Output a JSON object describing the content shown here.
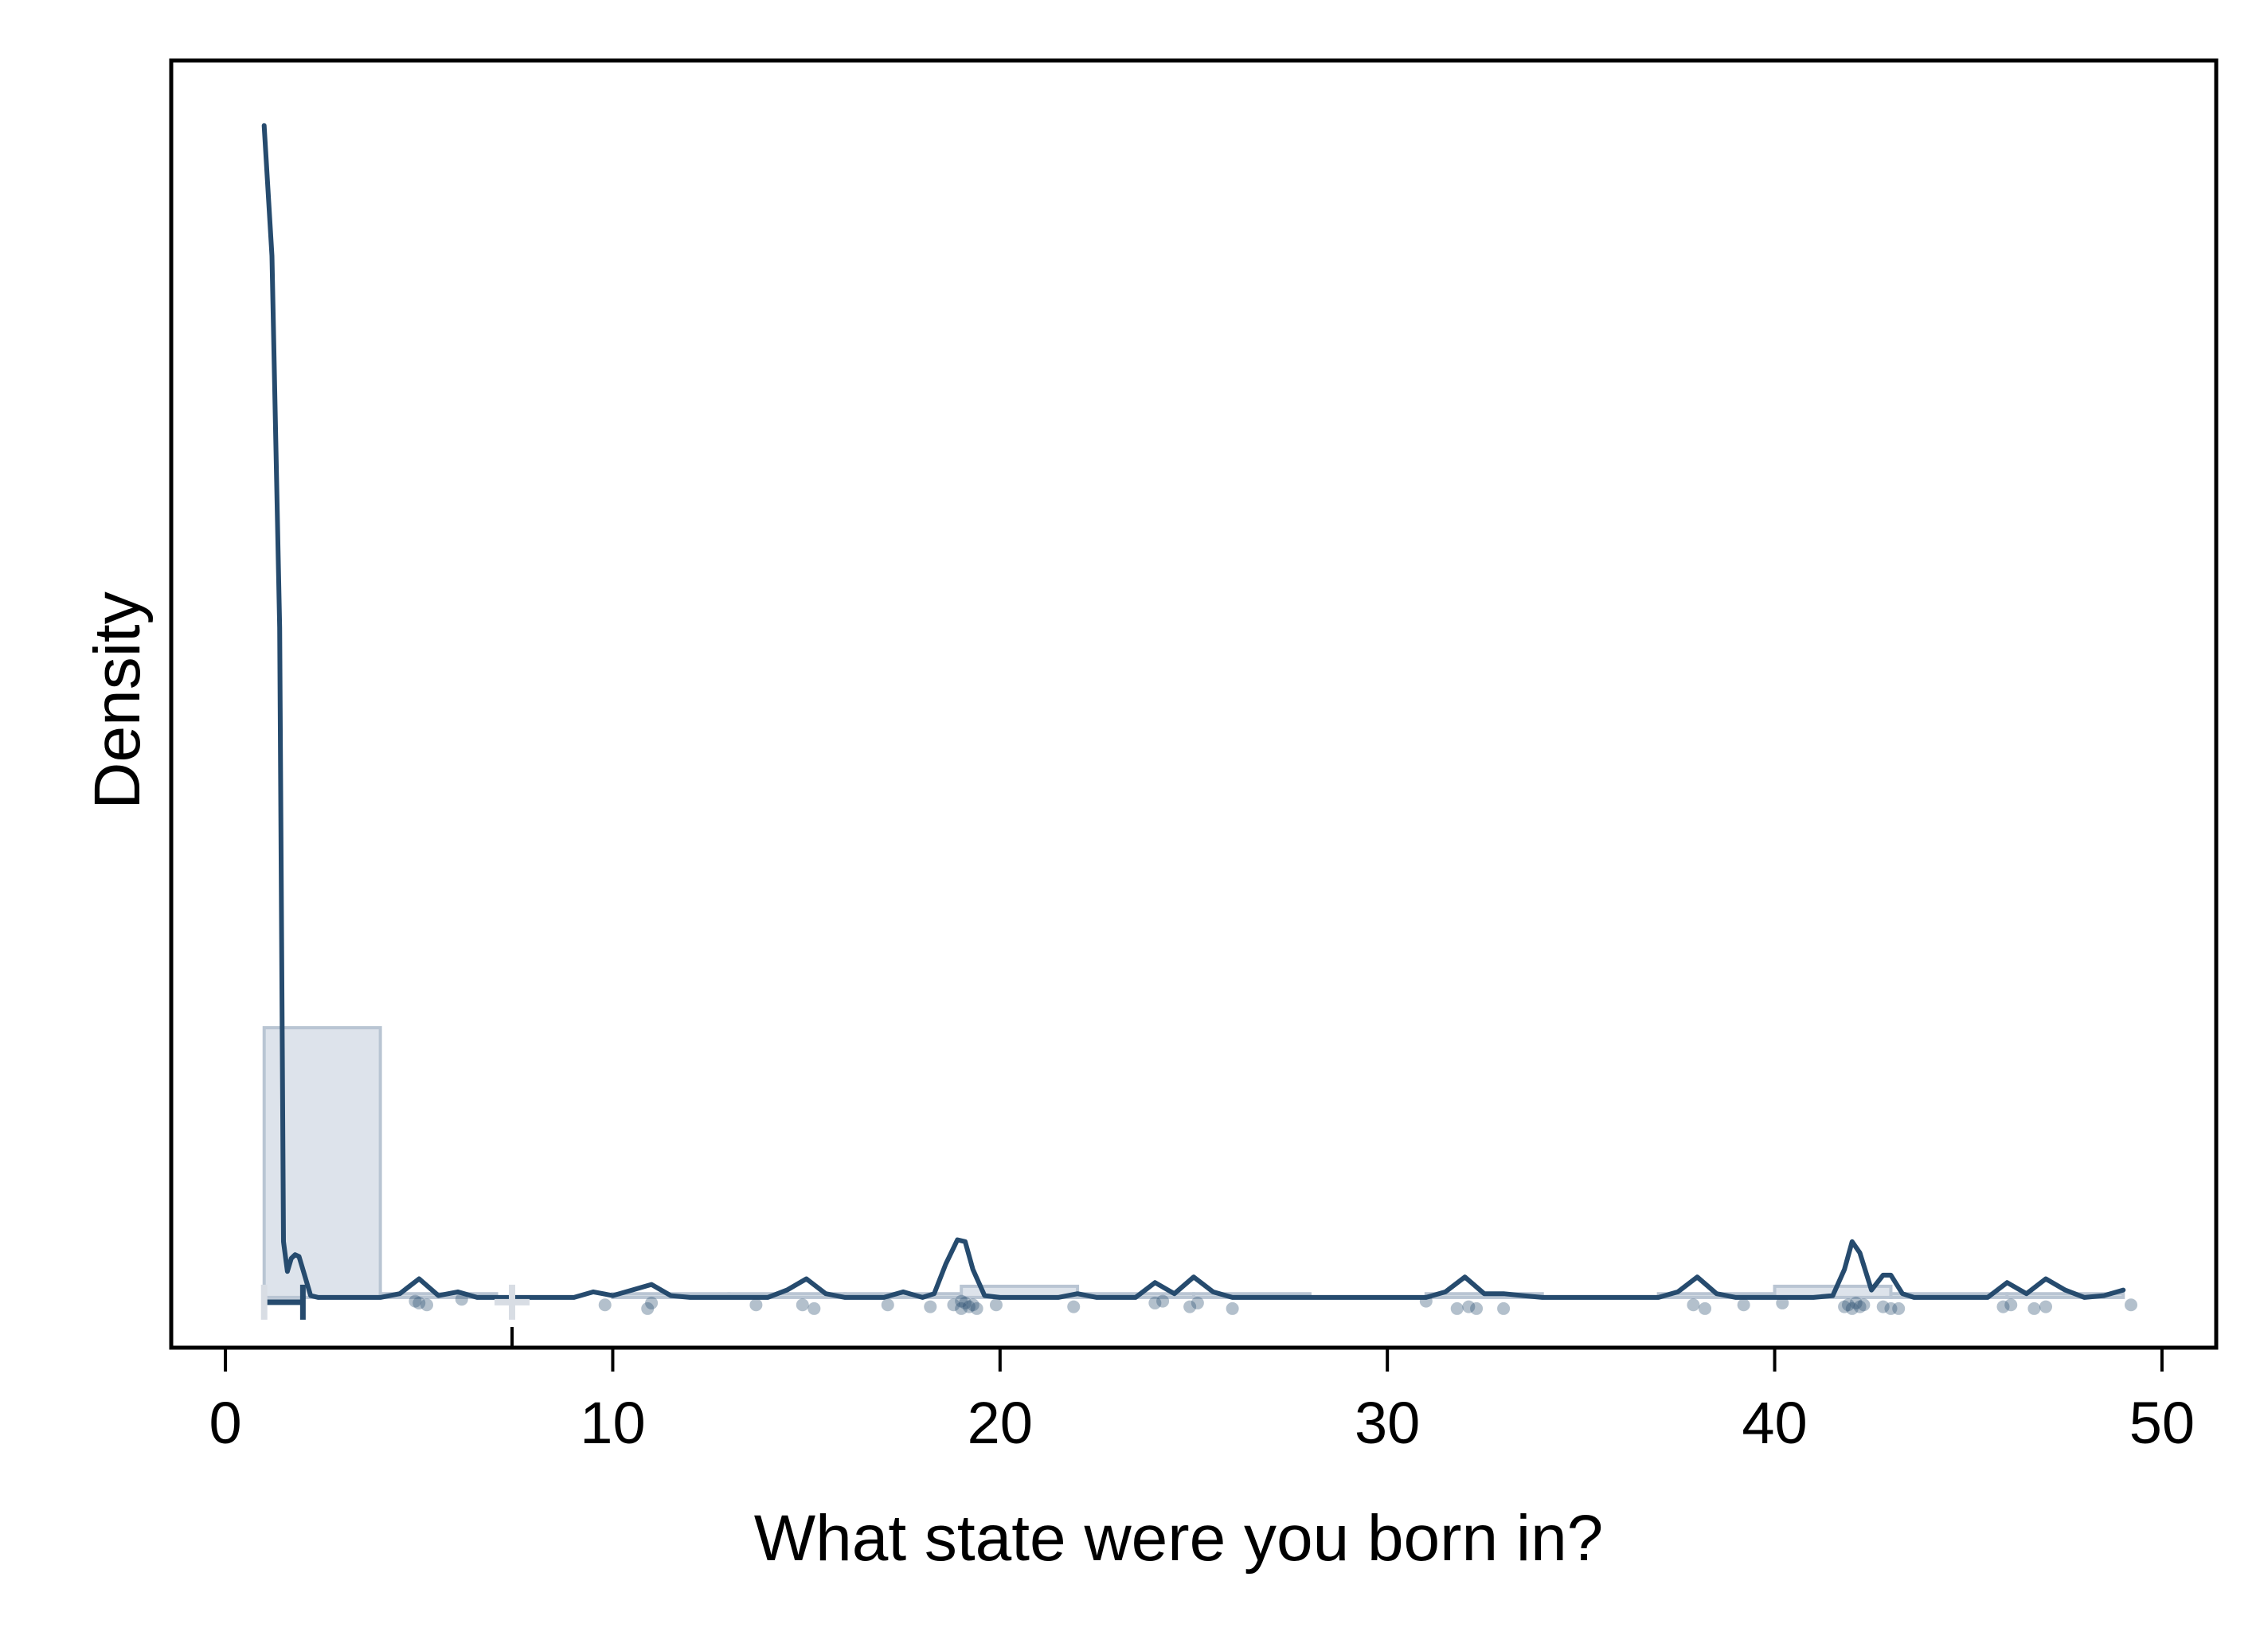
{
  "chart_data": {
    "type": "density",
    "title": "",
    "xlabel": "What state were you born in?",
    "ylabel": "Density",
    "xlim": [
      -1.4,
      51.4
    ],
    "ylim": [
      -0.027,
      0.665
    ],
    "x_ticks": [
      0,
      10,
      20,
      30,
      40,
      50
    ],
    "x_tick_labels": [
      "0",
      "10",
      "20",
      "30",
      "40",
      "50"
    ],
    "y_ticks": [],
    "grid": false,
    "legend": "none",
    "colors": {
      "line": "#264b6e",
      "histogram_fill": "#dbe1ea",
      "histogram_edge": "#b9c5d3",
      "points": "#264b6e",
      "frame": "#000000"
    },
    "histogram": {
      "bin_width": 3,
      "bins": [
        {
          "x0": 1,
          "x1": 4,
          "density": 0.145
        },
        {
          "x0": 4,
          "x1": 7,
          "density": 0.002
        },
        {
          "x0": 7,
          "x1": 10,
          "density": 0.0
        },
        {
          "x0": 10,
          "x1": 13,
          "density": 0.002
        },
        {
          "x0": 13,
          "x1": 16,
          "density": 0.002
        },
        {
          "x0": 16,
          "x1": 19,
          "density": 0.002
        },
        {
          "x0": 19,
          "x1": 22,
          "density": 0.006
        },
        {
          "x0": 22,
          "x1": 25,
          "density": 0.002
        },
        {
          "x0": 25,
          "x1": 28,
          "density": 0.002
        },
        {
          "x0": 28,
          "x1": 31,
          "density": 0.0
        },
        {
          "x0": 31,
          "x1": 34,
          "density": 0.002
        },
        {
          "x0": 34,
          "x1": 37,
          "density": 0.0
        },
        {
          "x0": 37,
          "x1": 40,
          "density": 0.002
        },
        {
          "x0": 40,
          "x1": 43,
          "density": 0.006
        },
        {
          "x0": 43,
          "x1": 46,
          "density": 0.002
        },
        {
          "x0": 46,
          "x1": 49,
          "density": 0.002
        }
      ]
    },
    "density_curve": {
      "x": [
        1.0,
        1.2,
        1.4,
        1.5,
        1.6,
        1.7,
        1.8,
        1.9,
        2.0,
        2.2,
        2.4,
        2.6,
        3.0,
        4.0,
        4.5,
        5.0,
        5.5,
        6.0,
        6.5,
        7.0,
        8.0,
        9.0,
        9.5,
        10.0,
        10.5,
        11.0,
        11.5,
        12.0,
        13.0,
        14.0,
        14.5,
        15.0,
        15.5,
        16.0,
        16.5,
        17.0,
        17.5,
        18.0,
        18.3,
        18.6,
        18.9,
        19.1,
        19.3,
        19.6,
        20.0,
        21.0,
        21.5,
        22.0,
        22.5,
        23.0,
        23.5,
        24.0,
        24.5,
        25.0,
        25.5,
        26.0,
        27.0,
        28.0,
        29.0,
        30.0,
        31.0,
        31.5,
        32.0,
        32.5,
        33.0,
        33.5,
        34.0,
        35.0,
        36.0,
        37.0,
        37.5,
        38.0,
        38.5,
        39.0,
        40.0,
        41.0,
        41.5,
        41.8,
        42.0,
        42.2,
        42.5,
        42.8,
        43.0,
        43.3,
        43.6,
        44.0,
        45.0,
        45.5,
        46.0,
        46.5,
        47.0,
        47.5,
        48.0,
        48.5,
        49.0
      ],
      "y": [
        0.63,
        0.56,
        0.36,
        0.03,
        0.014,
        0.021,
        0.023,
        0.022,
        0.015,
        0.001,
        0.0,
        0.0,
        0.0,
        0.0,
        0.002,
        0.01,
        0.001,
        0.003,
        0.0,
        0.0,
        0.0,
        0.0,
        0.003,
        0.001,
        0.004,
        0.007,
        0.001,
        0.0,
        0.0,
        0.0,
        0.004,
        0.01,
        0.002,
        0.0,
        0.0,
        0.0,
        0.003,
        0.0,
        0.002,
        0.018,
        0.031,
        0.03,
        0.015,
        0.001,
        0.0,
        0.0,
        0.0,
        0.002,
        0.0,
        0.0,
        0.0,
        0.008,
        0.002,
        0.011,
        0.003,
        0.0,
        0.0,
        0.0,
        0.0,
        0.0,
        0.0,
        0.003,
        0.011,
        0.002,
        0.002,
        0.001,
        0.0,
        0.0,
        0.0,
        0.0,
        0.003,
        0.011,
        0.002,
        0.0,
        0.0,
        0.0,
        0.001,
        0.015,
        0.03,
        0.024,
        0.004,
        0.012,
        0.012,
        0.002,
        0.0,
        0.0,
        0.0,
        0.0,
        0.008,
        0.002,
        0.01,
        0.004,
        0.0,
        0.001,
        0.004
      ]
    },
    "points": [
      {
        "x": 5.0,
        "y": -0.003
      },
      {
        "x": 5.2,
        "y": -0.004
      },
      {
        "x": 4.9,
        "y": -0.002
      },
      {
        "x": 6.1,
        "y": -0.001
      },
      {
        "x": 9.8,
        "y": -0.004
      },
      {
        "x": 11.0,
        "y": -0.003
      },
      {
        "x": 10.9,
        "y": -0.006
      },
      {
        "x": 13.7,
        "y": -0.004
      },
      {
        "x": 14.9,
        "y": -0.004
      },
      {
        "x": 15.2,
        "y": -0.006
      },
      {
        "x": 17.1,
        "y": -0.004
      },
      {
        "x": 18.2,
        "y": -0.005
      },
      {
        "x": 18.8,
        "y": -0.004
      },
      {
        "x": 19.0,
        "y": -0.006
      },
      {
        "x": 19.1,
        "y": -0.003
      },
      {
        "x": 19.2,
        "y": -0.005
      },
      {
        "x": 19.3,
        "y": -0.004
      },
      {
        "x": 19.4,
        "y": -0.006
      },
      {
        "x": 19.0,
        "y": -0.002
      },
      {
        "x": 19.9,
        "y": -0.004
      },
      {
        "x": 21.9,
        "y": -0.005
      },
      {
        "x": 24.0,
        "y": -0.003
      },
      {
        "x": 24.2,
        "y": -0.002
      },
      {
        "x": 24.9,
        "y": -0.005
      },
      {
        "x": 25.1,
        "y": -0.003
      },
      {
        "x": 26.0,
        "y": -0.006
      },
      {
        "x": 31.0,
        "y": -0.002
      },
      {
        "x": 31.8,
        "y": -0.006
      },
      {
        "x": 32.1,
        "y": -0.005
      },
      {
        "x": 32.3,
        "y": -0.006
      },
      {
        "x": 33.0,
        "y": -0.006
      },
      {
        "x": 37.9,
        "y": -0.004
      },
      {
        "x": 38.2,
        "y": -0.006
      },
      {
        "x": 39.2,
        "y": -0.004
      },
      {
        "x": 40.2,
        "y": -0.003
      },
      {
        "x": 41.8,
        "y": -0.005
      },
      {
        "x": 41.9,
        "y": -0.004
      },
      {
        "x": 42.0,
        "y": -0.006
      },
      {
        "x": 42.1,
        "y": -0.003
      },
      {
        "x": 42.2,
        "y": -0.005
      },
      {
        "x": 42.3,
        "y": -0.004
      },
      {
        "x": 42.8,
        "y": -0.005
      },
      {
        "x": 43.0,
        "y": -0.006
      },
      {
        "x": 43.2,
        "y": -0.006
      },
      {
        "x": 45.9,
        "y": -0.005
      },
      {
        "x": 46.1,
        "y": -0.004
      },
      {
        "x": 46.7,
        "y": -0.006
      },
      {
        "x": 47.0,
        "y": -0.005
      },
      {
        "x": 49.2,
        "y": -0.004
      }
    ],
    "summary_markers": {
      "median": 1,
      "interquartile_range": [
        1,
        2
      ],
      "mean": 7.4
    }
  }
}
